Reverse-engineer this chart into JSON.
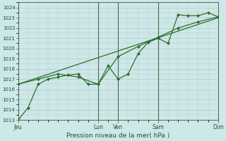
{
  "bg_color": "#cce8e8",
  "grid_major_color": "#aacccc",
  "grid_minor_color": "#ddbbbb",
  "line_color": "#2d6e2d",
  "marker_color": "#2d6e2d",
  "xlabel": "Pression niveau de la mer( hPa )",
  "ylim": [
    1013,
    1024.5
  ],
  "yticks": [
    1013,
    1014,
    1015,
    1016,
    1017,
    1018,
    1019,
    1020,
    1021,
    1022,
    1023,
    1024
  ],
  "xtick_labels": [
    "Jeu",
    "",
    "",
    "",
    "Lun",
    "Ven",
    "",
    "Sam",
    "",
    "",
    "Dim"
  ],
  "xtick_positions": [
    0,
    1,
    2,
    3,
    4,
    5,
    6,
    7,
    8,
    9,
    10
  ],
  "vline_positions": [
    0,
    4,
    5,
    7,
    10
  ],
  "vline_color": "#556644",
  "xlim": [
    0,
    10
  ],
  "line1_x": [
    0,
    0.5,
    1.0,
    1.5,
    2.0,
    2.5,
    3.0,
    3.5,
    4.0,
    4.5,
    5.0,
    5.5,
    6.0,
    6.5,
    7.0,
    7.5,
    8.0,
    8.5,
    9.0,
    9.5,
    10.0
  ],
  "line1_y": [
    1013.0,
    1014.2,
    1016.5,
    1017.0,
    1017.2,
    1017.4,
    1017.5,
    1016.5,
    1016.5,
    1018.3,
    1017.0,
    1017.5,
    1019.5,
    1020.6,
    1021.0,
    1020.5,
    1023.3,
    1023.2,
    1023.2,
    1023.5,
    1023.1
  ],
  "line2_x": [
    0,
    1,
    2,
    3,
    4,
    5,
    6,
    7,
    8,
    9,
    10
  ],
  "line2_y": [
    1016.5,
    1017.0,
    1017.5,
    1017.2,
    1016.5,
    1019.2,
    1020.2,
    1021.1,
    1022.0,
    1022.6,
    1023.1
  ],
  "line3_x": [
    0,
    10
  ],
  "line3_y": [
    1016.5,
    1023.0
  ],
  "figsize": [
    3.2,
    2.0
  ],
  "dpi": 100
}
